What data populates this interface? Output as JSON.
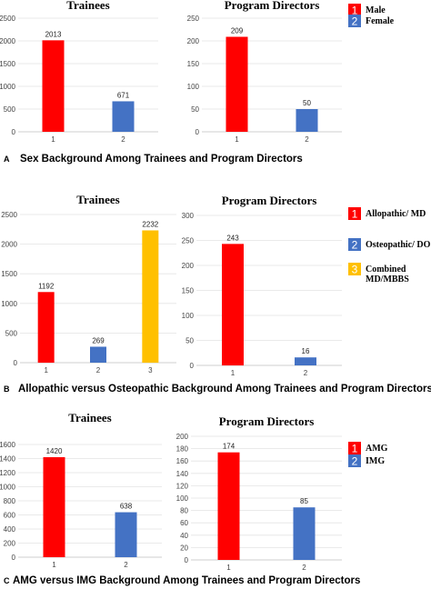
{
  "panels": [
    {
      "label": "A",
      "caption": "Sex Background Among Trainees and Program Directors",
      "legend": [
        {
          "num": "1",
          "text": [
            "Male"
          ],
          "color": "#ff0000"
        },
        {
          "num": "2",
          "text": [
            "Female"
          ],
          "color": "#4472c4"
        }
      ]
    },
    {
      "label": "B",
      "caption": "Allopathic versus Osteopathic Background Among Trainees and Program Directors",
      "legend": [
        {
          "num": "1",
          "text": [
            "Allopathic/ MD"
          ],
          "color": "#ff0000"
        },
        {
          "num": "2",
          "text": [
            "Osteopathic/ DO"
          ],
          "color": "#4472c4"
        },
        {
          "num": "3",
          "text": [
            "Combined",
            "MD/MBBS"
          ],
          "color": "#ffc000"
        }
      ]
    },
    {
      "label": "C",
      "caption": "AMG versus IMG Background Among Trainees and Program Directors",
      "legend": [
        {
          "num": "1",
          "text": [
            "AMG"
          ],
          "color": "#ff0000"
        },
        {
          "num": "2",
          "text": [
            "IMG"
          ],
          "color": "#4472c4"
        }
      ]
    }
  ],
  "chart_data": [
    {
      "type": "bar",
      "title": "Trainees",
      "categories": [
        "1",
        "2"
      ],
      "values": [
        2013,
        671
      ],
      "colors": [
        "#ff0000",
        "#4472c4"
      ],
      "ylim": [
        0,
        2500
      ],
      "yticks": [
        0,
        500,
        1000,
        1500,
        2000,
        2500
      ],
      "grid": true
    },
    {
      "type": "bar",
      "title": "Program Directors",
      "categories": [
        "1",
        "2"
      ],
      "values": [
        209,
        50
      ],
      "colors": [
        "#ff0000",
        "#4472c4"
      ],
      "ylim": [
        0,
        250
      ],
      "yticks": [
        0,
        50,
        100,
        150,
        200,
        250
      ],
      "grid": true
    },
    {
      "type": "bar",
      "title": "Trainees",
      "categories": [
        "1",
        "2",
        "3"
      ],
      "values": [
        1192,
        269,
        2232
      ],
      "colors": [
        "#ff0000",
        "#4472c4",
        "#ffc000"
      ],
      "ylim": [
        0,
        2500
      ],
      "yticks": [
        0,
        500,
        1000,
        1500,
        2000,
        2500
      ],
      "grid": true
    },
    {
      "type": "bar",
      "title": "Program Directors",
      "categories": [
        "1",
        "2"
      ],
      "values": [
        243,
        16
      ],
      "colors": [
        "#ff0000",
        "#4472c4"
      ],
      "ylim": [
        0,
        300
      ],
      "yticks": [
        0,
        50,
        100,
        150,
        200,
        250,
        300
      ],
      "grid": true
    },
    {
      "type": "bar",
      "title": "Trainees",
      "categories": [
        "1",
        "2"
      ],
      "values": [
        1420,
        638
      ],
      "colors": [
        "#ff0000",
        "#4472c4"
      ],
      "ylim": [
        0,
        1600
      ],
      "yticks": [
        0,
        200,
        400,
        600,
        800,
        1000,
        1200,
        1400,
        1600
      ],
      "grid": true
    },
    {
      "type": "bar",
      "title": "Program Directors",
      "categories": [
        "1",
        "2"
      ],
      "values": [
        174,
        85
      ],
      "colors": [
        "#ff0000",
        "#4472c4"
      ],
      "ylim": [
        0,
        200
      ],
      "yticks": [
        0,
        20,
        40,
        60,
        80,
        100,
        120,
        140,
        160,
        180,
        200
      ],
      "grid": true
    }
  ]
}
